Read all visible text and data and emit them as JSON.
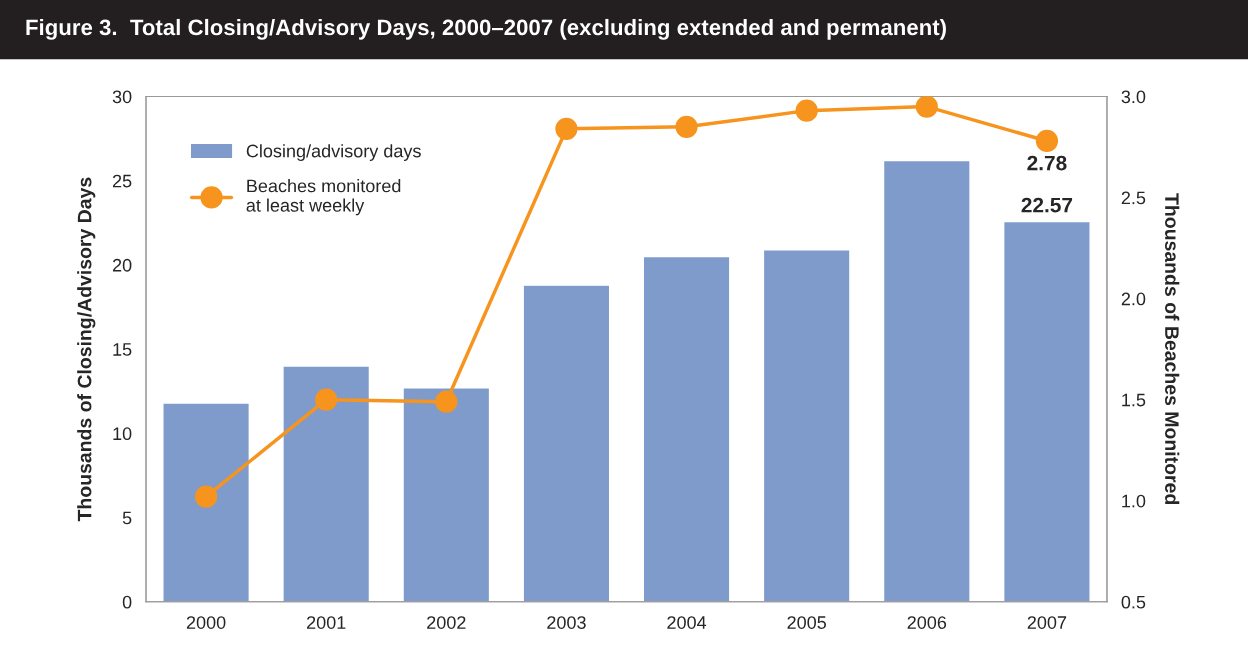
{
  "chart_data": {
    "type": "bar",
    "title": "Figure 3.  Total Closing/Advisory Days, 2000–2007 (excluding extended and permanent)",
    "categories": [
      "2000",
      "2001",
      "2002",
      "2003",
      "2004",
      "2005",
      "2006",
      "2007"
    ],
    "ylabel": "Thousands of Closing/Advisory Days",
    "y2label": "Thousands of Beaches Monitored",
    "series": [
      {
        "name": "Closing/advisory days",
        "color": "#7f9bcb",
        "values": [
          11.8,
          14.0,
          12.7,
          18.8,
          20.5,
          20.9,
          26.2,
          22.57
        ],
        "value_labels": [
          null,
          null,
          null,
          null,
          null,
          null,
          null,
          "22.57"
        ]
      },
      {
        "name": "Beaches monitored\nat least weekly",
        "type": "line",
        "axis": "y2",
        "color": "#f7941d",
        "marker": "circle",
        "line_style": "solid",
        "values": [
          1.02,
          1.5,
          1.49,
          2.84,
          2.85,
          2.93,
          2.95,
          2.78
        ],
        "value_labels": [
          null,
          null,
          null,
          null,
          null,
          null,
          null,
          "2.78"
        ]
      }
    ],
    "ylim": [
      0,
      30
    ],
    "yticks": [
      0,
      5,
      10,
      15,
      20,
      25,
      30
    ],
    "y2lim": [
      0.5,
      3.0
    ],
    "y2ticks": [
      {
        "value": 0.5,
        "label": "0.5"
      },
      {
        "value": 1.0,
        "label": "1.0"
      },
      {
        "value": 1.5,
        "label": "1.5"
      },
      {
        "value": 2.0,
        "label": "2.0"
      },
      {
        "value": 2.5,
        "label": "2.5"
      },
      {
        "value": 3.0,
        "label": "3.0"
      }
    ],
    "grid": false,
    "legend": "top left"
  }
}
